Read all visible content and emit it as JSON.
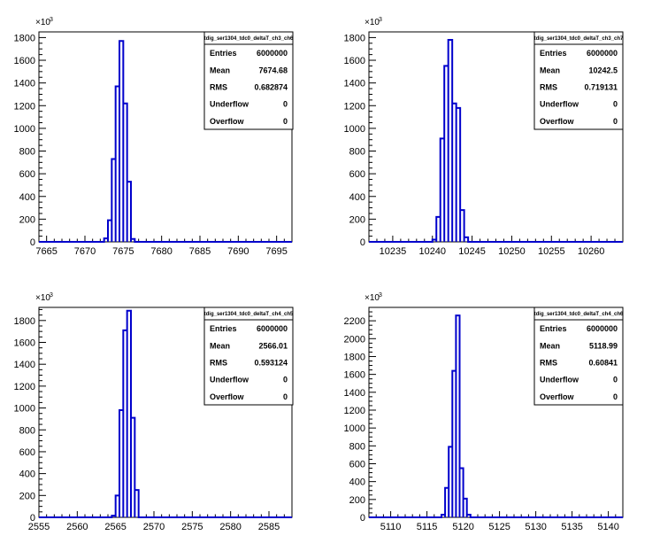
{
  "chart_data": [
    {
      "type": "bar",
      "title": "tdig_ser1304_tdc0_deltaT_ch3_ch6",
      "xlabel": "",
      "ylabel": "",
      "xlim": [
        7664,
        7697
      ],
      "ylim": [
        0,
        1850
      ],
      "xticks": [
        7665,
        7670,
        7675,
        7680,
        7685,
        7690,
        7695
      ],
      "yticks": [
        0,
        200,
        400,
        600,
        800,
        1000,
        1200,
        1400,
        1600,
        1800
      ],
      "y_multiplier_label": "×10",
      "y_multiplier_exp": "3",
      "bin_width": 0.5,
      "x": [
        7672.5,
        7673.0,
        7673.5,
        7674.0,
        7674.5,
        7675.0,
        7675.5,
        7676.0
      ],
      "values": [
        30,
        190,
        730,
        1370,
        1770,
        1220,
        530,
        25
      ],
      "stats": {
        "Entries": "6000000",
        "Mean": "7674.68",
        "RMS": "0.682874",
        "Underflow": "0",
        "Overflow": "0"
      },
      "line_color": "#0000cc",
      "grid": false
    },
    {
      "type": "bar",
      "title": "tdig_ser1304_tdc0_deltaT_ch3_ch7",
      "xlabel": "",
      "ylabel": "",
      "xlim": [
        10232,
        10264
      ],
      "ylim": [
        0,
        1850
      ],
      "xticks": [
        10235,
        10240,
        10245,
        10250,
        10255,
        10260
      ],
      "yticks": [
        0,
        200,
        400,
        600,
        800,
        1000,
        1200,
        1400,
        1600,
        1800
      ],
      "y_multiplier_label": "×10",
      "y_multiplier_exp": "3",
      "bin_width": 0.5,
      "x": [
        10240.0,
        10240.5,
        10241.0,
        10241.5,
        10242.0,
        10242.5,
        10243.0,
        10243.5,
        10244.0
      ],
      "values": [
        20,
        220,
        910,
        1550,
        1780,
        1220,
        1180,
        280,
        40
      ],
      "stats": {
        "Entries": "6000000",
        "Mean": "10242.5",
        "RMS": "0.719131",
        "Underflow": "0",
        "Overflow": "0"
      },
      "line_color": "#0000cc",
      "grid": false
    },
    {
      "type": "bar",
      "title": "tdig_ser1304_tdc0_deltaT_ch4_ch5",
      "xlabel": "",
      "ylabel": "",
      "xlim": [
        2555,
        2588
      ],
      "ylim": [
        0,
        1920
      ],
      "xticks": [
        2555,
        2560,
        2565,
        2570,
        2575,
        2580,
        2585
      ],
      "yticks": [
        0,
        200,
        400,
        600,
        800,
        1000,
        1200,
        1400,
        1600,
        1800
      ],
      "y_multiplier_label": "×10",
      "y_multiplier_exp": "3",
      "bin_width": 0.5,
      "x": [
        2564.5,
        2565.0,
        2565.5,
        2566.0,
        2566.5,
        2567.0,
        2567.5
      ],
      "values": [
        15,
        200,
        980,
        1710,
        1890,
        910,
        250
      ],
      "stats": {
        "Entries": "6000000",
        "Mean": "2566.01",
        "RMS": "0.593124",
        "Underflow": "0",
        "Overflow": "0"
      },
      "line_color": "#0000cc",
      "grid": false
    },
    {
      "type": "bar",
      "title": "tdig_ser1304_tdc0_deltaT_ch4_ch6",
      "xlabel": "",
      "ylabel": "",
      "xlim": [
        5107,
        5142
      ],
      "ylim": [
        0,
        2350
      ],
      "xticks": [
        5110,
        5115,
        5120,
        5125,
        5130,
        5135,
        5140
      ],
      "yticks": [
        0,
        200,
        400,
        600,
        800,
        1000,
        1200,
        1400,
        1600,
        1800,
        2000,
        2200
      ],
      "y_multiplier_label": "×10",
      "y_multiplier_exp": "3",
      "bin_width": 0.5,
      "x": [
        5117.0,
        5117.5,
        5118.0,
        5118.5,
        5119.0,
        5119.5,
        5120.0,
        5120.5
      ],
      "values": [
        30,
        330,
        790,
        1640,
        2260,
        550,
        210,
        30
      ],
      "stats": {
        "Entries": "6000000",
        "Mean": "5118.99",
        "RMS": "0.60841",
        "Underflow": "0",
        "Overflow": "0"
      },
      "line_color": "#0000cc",
      "grid": false
    }
  ],
  "stat_labels": [
    "Entries",
    "Mean",
    "RMS",
    "Underflow",
    "Overflow"
  ]
}
